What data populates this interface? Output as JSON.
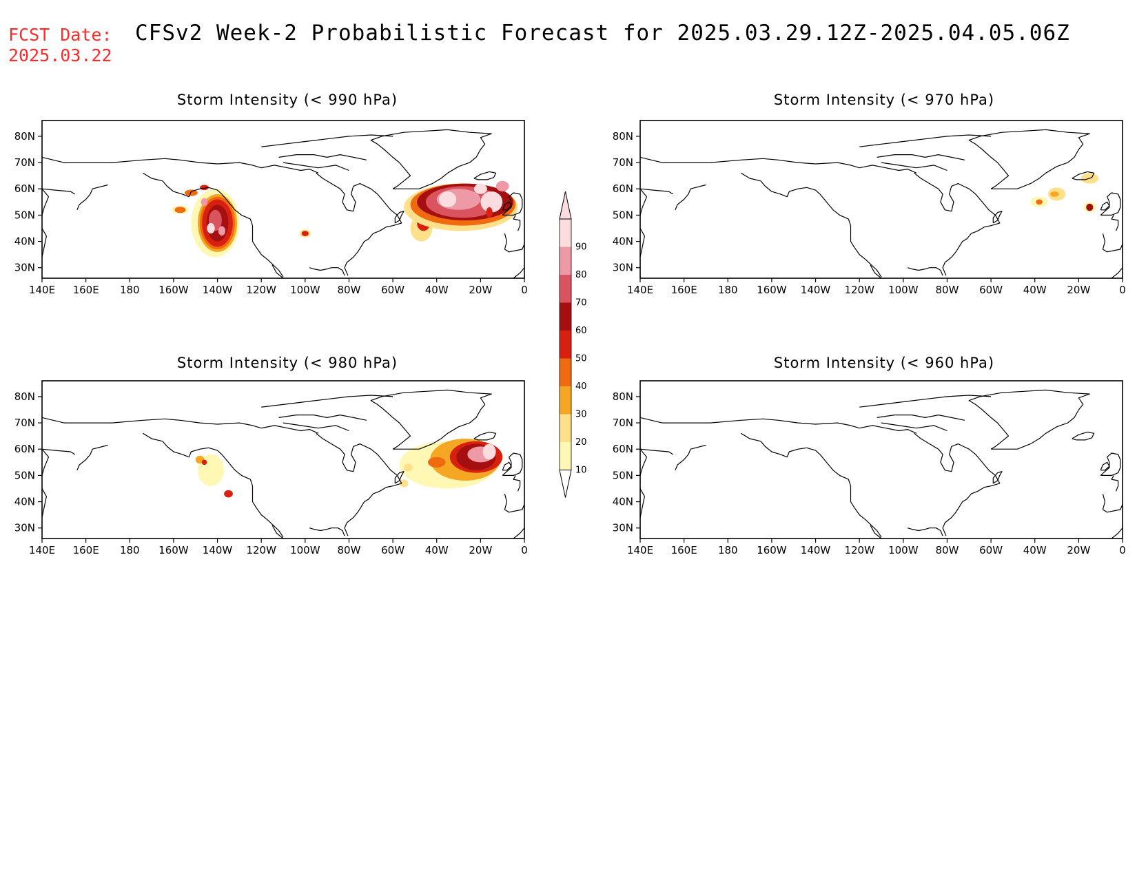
{
  "header": {
    "fcst_label": "FCST Date:",
    "fcst_date": "2025.03.22",
    "title": "CFSv2 Week-2 Probabilistic Forecast for 2025.03.29.12Z-2025.04.05.06Z"
  },
  "axes": {
    "lon_ticks": [
      "140E",
      "160E",
      "180",
      "160W",
      "140W",
      "120W",
      "100W",
      "80W",
      "60W",
      "40W",
      "20W",
      "0"
    ],
    "lat_ticks": [
      "80N",
      "70N",
      "60N",
      "50N",
      "40N",
      "30N"
    ]
  },
  "colorbar": {
    "levels": [
      "10",
      "20",
      "30",
      "40",
      "50",
      "60",
      "70",
      "80",
      "90"
    ],
    "colors": [
      "#fff7b4",
      "#ffe08a",
      "#f5a623",
      "#f06a10",
      "#d72010",
      "#a50f0f",
      "#d9545e",
      "#ee9aa6",
      "#fbdde0"
    ]
  },
  "panels": [
    {
      "id": "p990",
      "title": "Storm Intensity (< 990 hPa)"
    },
    {
      "id": "p970",
      "title": "Storm Intensity (< 970 hPa)"
    },
    {
      "id": "p980",
      "title": "Storm Intensity (< 980 hPa)"
    },
    {
      "id": "p960",
      "title": "Storm Intensity (< 960 hPa)"
    }
  ]
}
